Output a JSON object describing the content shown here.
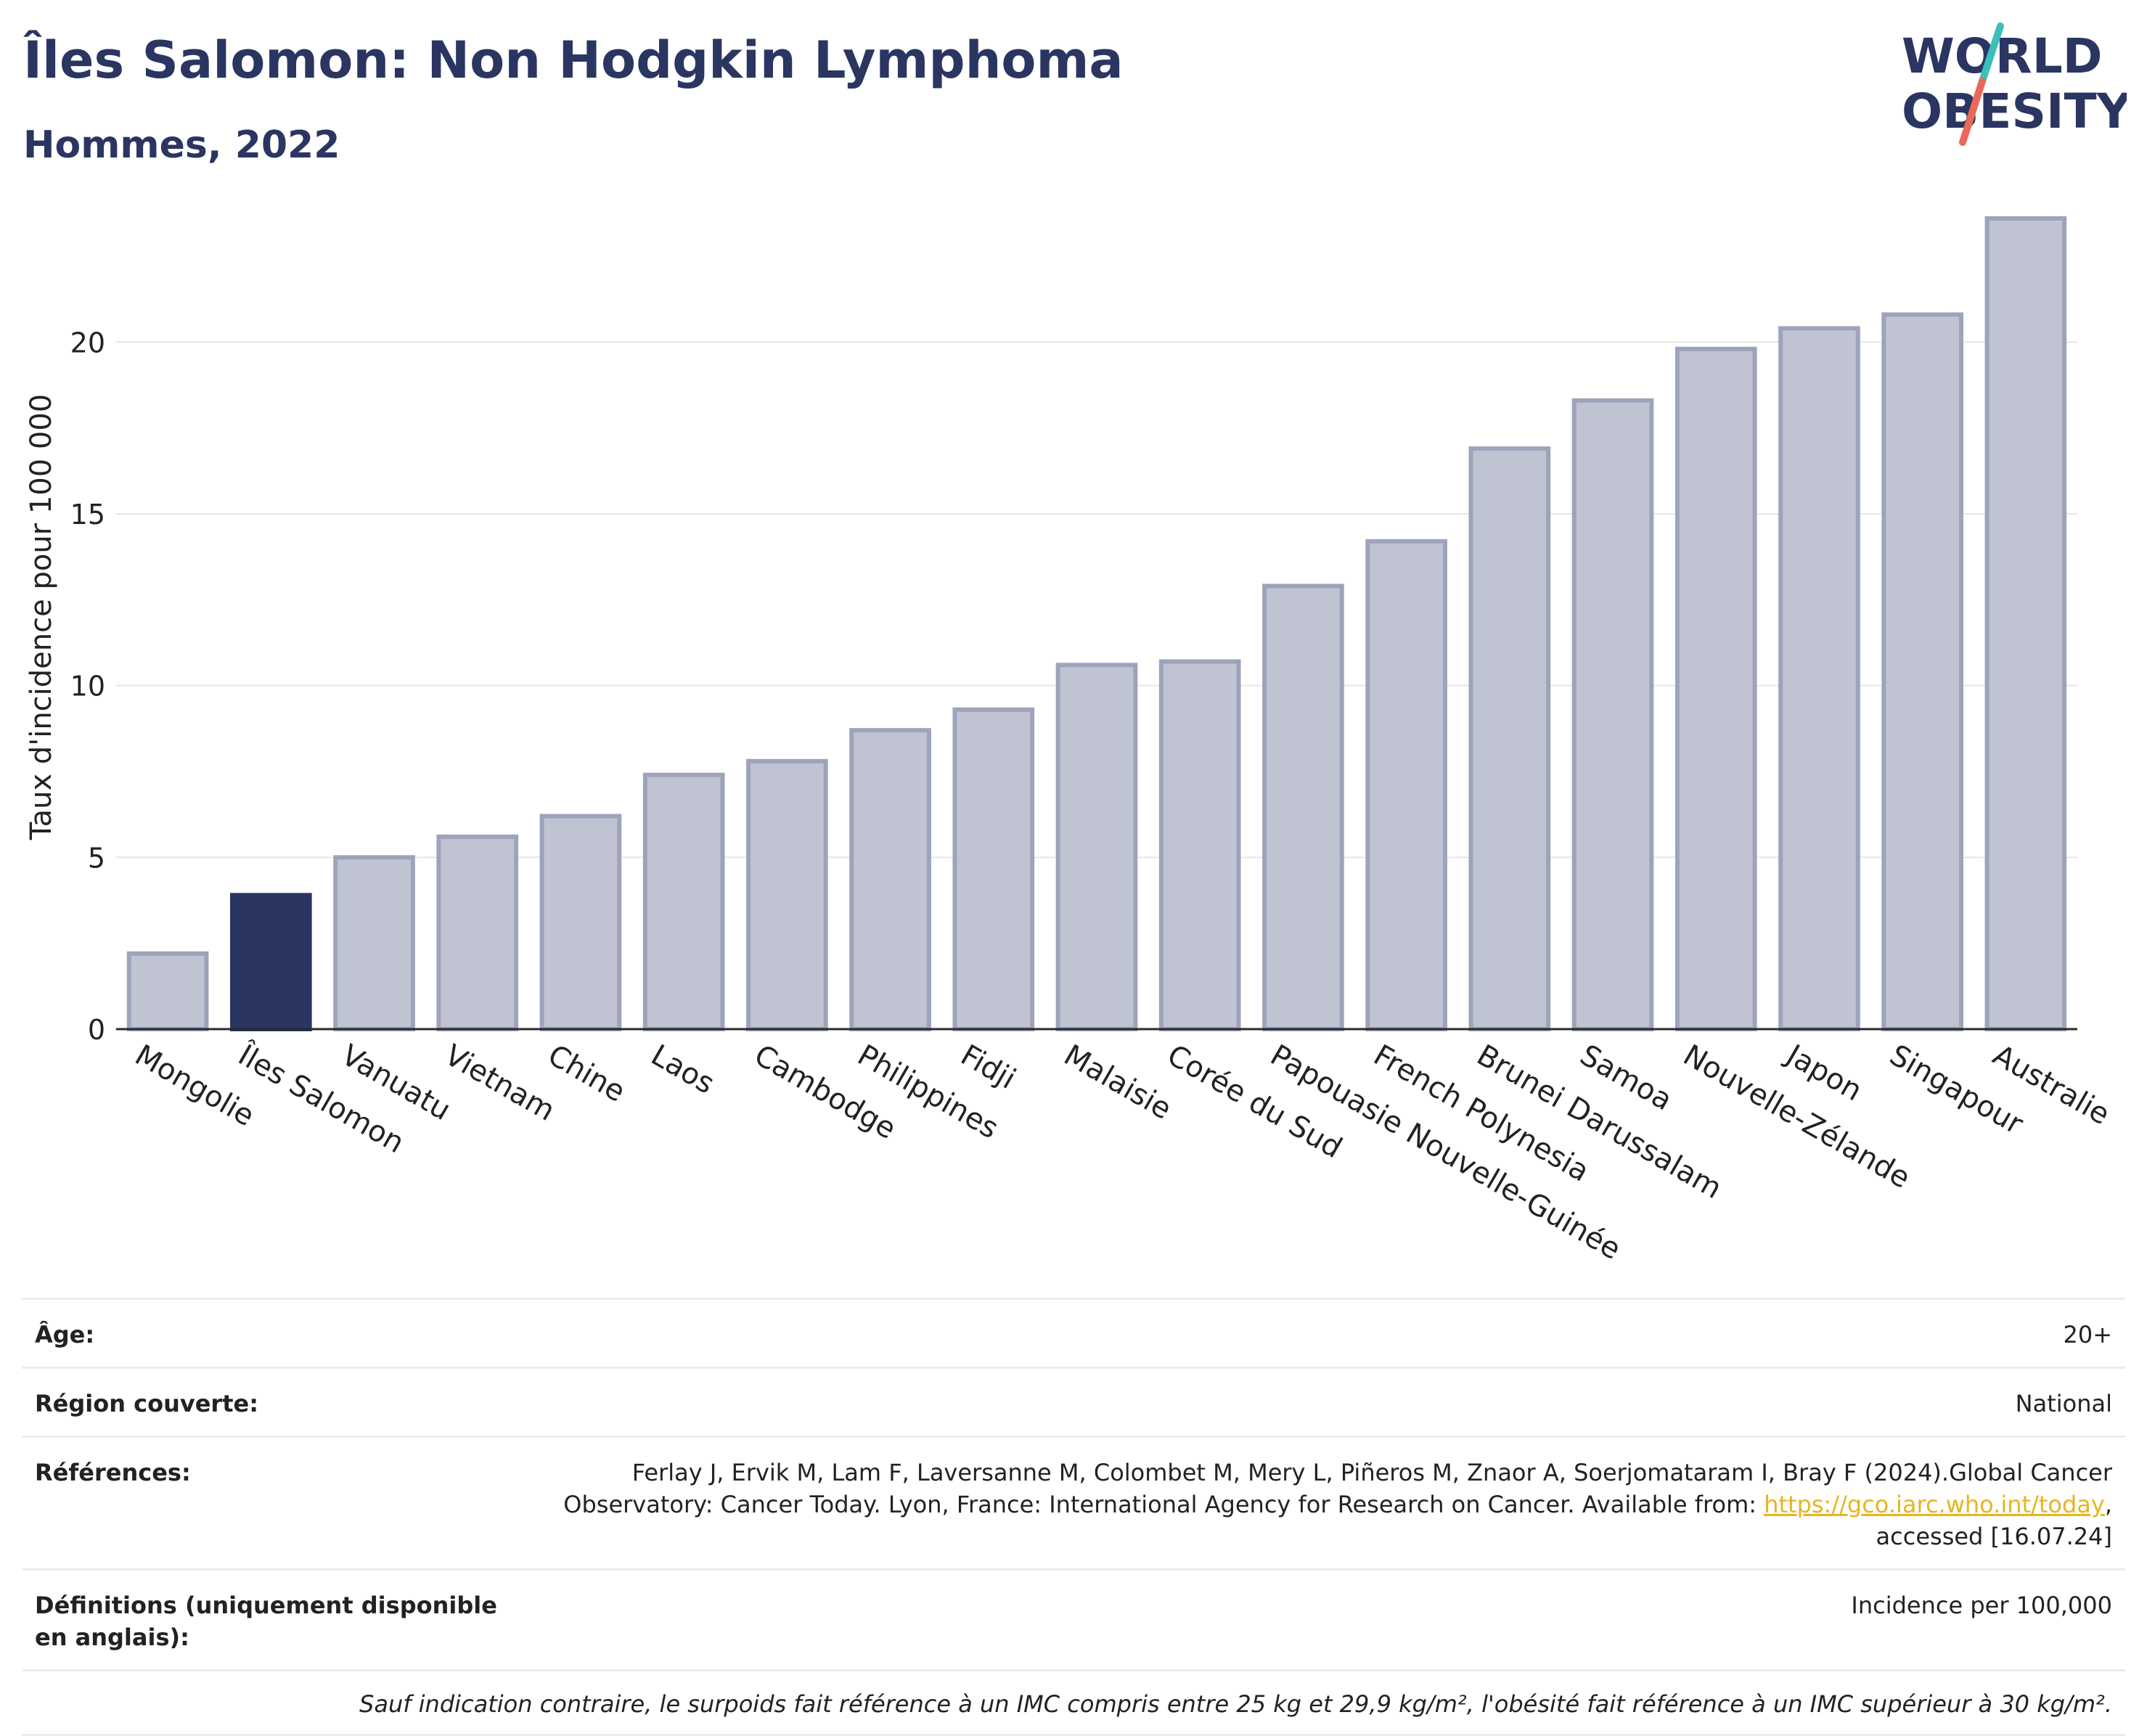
{
  "header": {
    "title": "Îles Salomon: Non Hodgkin Lymphoma",
    "subtitle": "Hommes, 2022"
  },
  "logo": {
    "line1": "WORLD",
    "line2": "OBESITY",
    "colors": {
      "text": "#2a3561",
      "slash_top": "#3bbfb8",
      "slash_bottom": "#e8695a"
    }
  },
  "chart_data": {
    "type": "bar",
    "title": "",
    "xlabel": "",
    "ylabel": "Taux d'incidence pour 100 000",
    "ylim": [
      0,
      24
    ],
    "yticks": [
      0,
      5,
      10,
      15,
      20
    ],
    "grid": true,
    "highlight": "Îles Salomon",
    "colors": {
      "bar": "#c0c4d2",
      "bar_border": "#9da3ba",
      "highlight": "#2a3561"
    },
    "categories": [
      "Mongolie",
      "Îles Salomon",
      "Vanuatu",
      "Vietnam",
      "Chine",
      "Laos",
      "Cambodge",
      "Philippines",
      "Fidji",
      "Malaisie",
      "Corée du Sud",
      "Papouasie Nouvelle-Guinée",
      "French Polynesia",
      "Brunei Darussalam",
      "Samoa",
      "Nouvelle-Zélande",
      "Japon",
      "Singapour",
      "Australie"
    ],
    "values": [
      2.2,
      3.9,
      5.0,
      5.6,
      6.2,
      7.4,
      7.8,
      8.7,
      9.3,
      10.6,
      10.7,
      12.9,
      14.2,
      16.9,
      18.3,
      19.8,
      20.4,
      20.8,
      23.6
    ]
  },
  "meta": {
    "age_label": "Âge:",
    "age_value": "20+",
    "region_label": "Région couverte:",
    "region_value": "National",
    "refs_label": "Références:",
    "refs_text": "Ferlay J, Ervik M, Lam F, Laversanne M, Colombet M, Mery L, Piñeros M, Znaor A, Soerjomataram I, Bray F (2024).Global Cancer Observatory: Cancer Today. Lyon, France: International Agency for Research on Cancer. Available from: ",
    "refs_link": "https://gco.iarc.who.int/today",
    "refs_after": ", accessed [16.07.24]",
    "defs_label": "Définitions (uniquement disponible en anglais):",
    "defs_value": "Incidence per 100,000",
    "note": "Sauf indication contraire, le surpoids fait référence à un IMC compris entre 25 kg et 29,9 kg/m², l'obésité fait référence à un IMC supérieur à 30 kg/m²."
  }
}
